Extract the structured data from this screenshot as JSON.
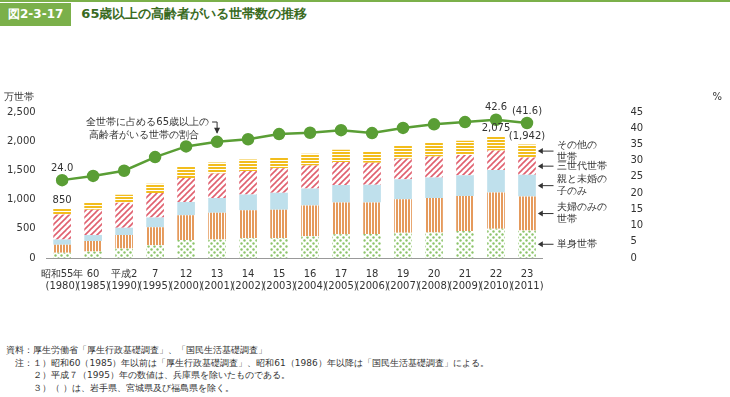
{
  "chart_data": {
    "type": "bar",
    "figure_number": "図2-3-17",
    "title": "65歳以上の高齢者がいる世帯数の推移",
    "y_label": "万世帯",
    "y2_label": "%",
    "categories": [
      "昭和55年 (1980)",
      "60 (1985)",
      "平成2 (1990)",
      "7 (1995)",
      "12 (2000)",
      "13 (2001)",
      "14 (2002)",
      "15 (2003)",
      "16 (2004)",
      "17 (2005)",
      "18 (2006)",
      "19 (2007)",
      "20 (2008)",
      "21 (2009)",
      "22 (2010)",
      "23 (2011)"
    ],
    "stacked": true,
    "grid": false,
    "data_labels": false,
    "series": [
      {
        "name": "単身世帯",
        "color": "#8cc46a",
        "values": [
          91,
          113,
          161,
          220,
          308,
          318,
          341,
          341,
          373,
          407,
          410,
          433,
          435,
          463,
          502,
          470
        ]
      },
      {
        "name": "夫婦のみの世帯",
        "color": "#e59a5c",
        "values": [
          138,
          180,
          231,
          308,
          423,
          455,
          475,
          485,
          525,
          542,
          540,
          573,
          591,
          598,
          619,
          582
        ]
      },
      {
        "name": "親と未婚の子のみ",
        "color": "#bfe0ec",
        "values": [
          89,
          101,
          128,
          164,
          227,
          256,
          273,
          293,
          293,
          301,
          306,
          342,
          353,
          358,
          384,
          374
        ]
      },
      {
        "name": "三世代世帯",
        "color": "#e0606f",
        "values": [
          425,
          431,
          427,
          423,
          414,
          418,
          401,
          417,
          392,
          395,
          375,
          353,
          360,
          343,
          335,
          293
        ]
      },
      {
        "name": "その他の世帯",
        "color": "#f2bd1d",
        "values": [
          107,
          115,
          135,
          155,
          192,
          190,
          195,
          192,
          203,
          209,
          198,
          226,
          239,
          247,
          235,
          223
        ]
      },
      {
        "name": "全世帯に占める65歳以上の高齢者がいる世帯の割合",
        "type": "line",
        "axis": "y2",
        "color": "#5a9e35",
        "marker": "circle",
        "line_style": "solid",
        "values": [
          24.0,
          25.3,
          26.9,
          31.1,
          34.4,
          35.8,
          36.6,
          38.2,
          38.6,
          39.4,
          38.5,
          40.1,
          41.2,
          41.9,
          42.6,
          41.6
        ]
      }
    ],
    "ylim": [
      0,
      2500
    ],
    "yticks": [
      0,
      500,
      {
        "value": 1000,
        "label": "1,000"
      },
      {
        "value": 1500,
        "label": "1,500"
      },
      {
        "value": 2000,
        "label": "2,000"
      },
      {
        "value": 2500,
        "label": "2,500"
      }
    ],
    "y2lim": [
      0,
      45
    ],
    "y2ticks": [
      0,
      5,
      10,
      15,
      20,
      25,
      30,
      35,
      40,
      45
    ],
    "annotations": [
      {
        "text": "850",
        "category": "昭和55年 (1980)",
        "value": 850,
        "axis": "y"
      },
      {
        "text": "2,075",
        "category": "22 (2010)",
        "value": 2075,
        "axis": "y"
      },
      {
        "text": "(1,942)",
        "category": "23 (2011)",
        "value": 1942,
        "axis": "y"
      },
      {
        "text": "24.0",
        "category": "昭和55年 (1980)",
        "value": 24.0,
        "axis": "y2"
      },
      {
        "text": "42.6",
        "category": "22 (2010)",
        "value": 42.6,
        "axis": "y2"
      },
      {
        "text": "(41.6)",
        "category": "23 (2011)",
        "value": 41.6,
        "axis": "y2"
      }
    ],
    "notes": [
      "資料：厚生労働省「厚生行政基礎調査」、「国民生活基礎調査」",
      "　注：１）昭和60（1985）年以前は「厚生行政基礎調査」、昭和61（1986）年以降は「国民生活基礎調査」による。",
      "　　　２）平成７（1995）年の数値は、兵庫県を除いたものである。",
      "　　　３）（ ）は、岩手県、宮城県及び福島県を除く。"
    ]
  }
}
